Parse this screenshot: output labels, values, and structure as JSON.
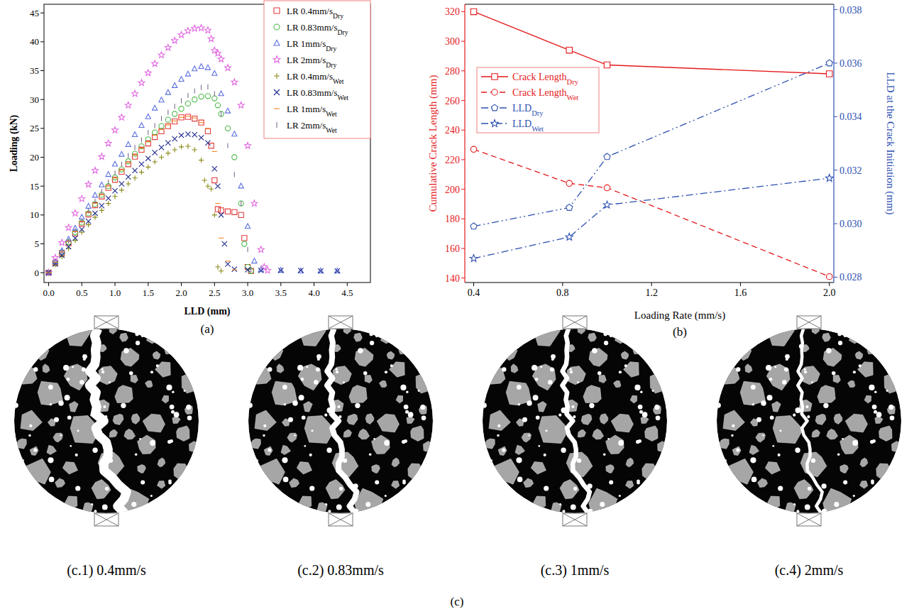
{
  "chart_data": [
    {
      "type": "scatter",
      "label": "(a)",
      "x_label": "LLD (mm)",
      "y_label": "Loading (kN)",
      "xlim": [
        -0.07,
        4.85
      ],
      "xticks": [
        {
          "value": 0,
          "label": "0.0"
        },
        0.5,
        {
          "value": 1,
          "label": "1.0"
        },
        1.5,
        {
          "value": 2,
          "label": "2.0"
        },
        2.5,
        {
          "value": 3,
          "label": "3.0"
        },
        3.5,
        {
          "value": 4,
          "label": "4.0"
        },
        4.5
      ],
      "ylim": [
        -1.7,
        46.5
      ],
      "yticks": [
        0,
        5,
        10,
        15,
        20,
        25,
        30,
        35,
        40,
        45
      ],
      "legend": "upper right",
      "series": [
        {
          "name": "LR 0.4mm/sDry",
          "color": "#e23b3b",
          "marker": "square",
          "x": [
            0,
            0.1,
            0.2,
            0.3,
            0.4,
            0.5,
            0.6,
            0.7,
            0.8,
            0.9,
            1,
            1.1,
            1.2,
            1.3,
            1.4,
            1.5,
            1.6,
            1.7,
            1.8,
            1.9,
            2,
            2.1,
            2.2,
            2.3,
            2.4,
            2.45,
            2.5,
            2.55,
            2.6,
            2.7,
            2.8,
            2.9,
            2.95,
            3.0,
            3.05
          ],
          "values": [
            0,
            1.7,
            3.4,
            5.1,
            6.8,
            8.5,
            10.1,
            11.7,
            13.2,
            14.7,
            16.1,
            17.5,
            18.8,
            20.1,
            21.3,
            22.4,
            23.5,
            24.5,
            25.4,
            26.2,
            26.9,
            27,
            26.7,
            26,
            24.5,
            22,
            16,
            11,
            10.8,
            10.6,
            10.5,
            10,
            6,
            1,
            0.3
          ]
        },
        {
          "name": "LR 0.83mm/sDry",
          "color": "#4cb849",
          "marker": "circle",
          "x": [
            0,
            0.1,
            0.2,
            0.3,
            0.4,
            0.5,
            0.6,
            0.7,
            0.8,
            0.9,
            1,
            1.1,
            1.2,
            1.3,
            1.4,
            1.5,
            1.6,
            1.7,
            1.8,
            1.9,
            2,
            2.1,
            2.2,
            2.3,
            2.4,
            2.5,
            2.55,
            2.6,
            2.7,
            2.8,
            2.9,
            2.95,
            3.0,
            3.05
          ],
          "values": [
            0,
            1.8,
            3.5,
            5.3,
            7,
            8.7,
            10.3,
            11.9,
            13.5,
            15,
            16.5,
            17.9,
            19.3,
            20.6,
            21.9,
            23.1,
            24.3,
            25.4,
            26.5,
            27.5,
            28.4,
            29.3,
            30,
            30.5,
            30.6,
            30.2,
            29,
            27.5,
            25,
            20,
            12,
            5,
            1,
            0.3
          ]
        },
        {
          "name": "LR 1mm/sDry",
          "color": "#5b6fe0",
          "marker": "triangle",
          "x": [
            0,
            0.1,
            0.2,
            0.3,
            0.4,
            0.5,
            0.6,
            0.7,
            0.8,
            0.9,
            1,
            1.1,
            1.2,
            1.3,
            1.4,
            1.5,
            1.6,
            1.7,
            1.8,
            1.9,
            2,
            2.1,
            2.2,
            2.3,
            2.4,
            2.5,
            2.6,
            2.7,
            2.8,
            2.9,
            3.0,
            3.1,
            3.2,
            3.5,
            3.8,
            4.1,
            4.35
          ],
          "values": [
            0,
            1.9,
            3.8,
            5.8,
            7.7,
            9.6,
            11.5,
            13.4,
            15.2,
            17,
            18.8,
            20.5,
            22.2,
            23.9,
            25.5,
            27,
            28.5,
            29.9,
            31.2,
            32.4,
            33.5,
            34.4,
            35.3,
            35.7,
            35.5,
            34.5,
            31,
            28,
            24,
            15,
            8,
            2,
            0.5,
            0.4,
            0.3,
            0.3,
            0.3
          ]
        },
        {
          "name": "LR 2mm/sDry",
          "color": "#e066e0",
          "marker": "star",
          "x": [
            0,
            0.1,
            0.2,
            0.3,
            0.4,
            0.5,
            0.6,
            0.7,
            0.8,
            0.9,
            1,
            1.1,
            1.2,
            1.3,
            1.4,
            1.5,
            1.6,
            1.7,
            1.8,
            1.9,
            2,
            2.1,
            2.2,
            2.3,
            2.4,
            2.45,
            2.5,
            2.55,
            2.6,
            2.7,
            2.8,
            2.9,
            3.0,
            3.1,
            3.2,
            3.25,
            3.3
          ],
          "values": [
            0,
            2.6,
            5.2,
            7.8,
            10.3,
            12.8,
            15.3,
            17.7,
            20.1,
            22.4,
            24.7,
            26.9,
            29,
            31,
            32.9,
            34.6,
            36.2,
            37.7,
            39,
            40.2,
            41.2,
            41.9,
            42.3,
            42.4,
            42,
            40.5,
            38.5,
            38,
            37,
            35.5,
            33,
            29,
            22,
            12,
            4,
            1,
            0.4
          ]
        },
        {
          "name": "LR 0.4mm/sWet",
          "color": "#8a8a1a",
          "marker": "plus",
          "x": [
            0,
            0.1,
            0.2,
            0.3,
            0.4,
            0.5,
            0.6,
            0.7,
            0.8,
            0.9,
            1,
            1.1,
            1.2,
            1.3,
            1.4,
            1.5,
            1.6,
            1.7,
            1.8,
            1.9,
            2,
            2.1,
            2.2,
            2.3,
            2.35,
            2.4,
            2.45,
            2.5,
            2.55,
            2.6
          ],
          "values": [
            0,
            1.4,
            2.8,
            4.2,
            5.6,
            7,
            8.3,
            9.6,
            10.8,
            12,
            13.2,
            14.3,
            15.4,
            16.4,
            17.4,
            18.3,
            19.2,
            20,
            20.7,
            21.3,
            21.8,
            21.9,
            21.3,
            19.5,
            16,
            15,
            14.5,
            10,
            1,
            0.3
          ]
        },
        {
          "name": "LR 0.83mm/sWet",
          "color": "#1f2a8c",
          "marker": "x",
          "x": [
            0,
            0.1,
            0.2,
            0.3,
            0.4,
            0.5,
            0.6,
            0.7,
            0.8,
            0.9,
            1,
            1.1,
            1.2,
            1.3,
            1.4,
            1.5,
            1.6,
            1.7,
            1.8,
            1.9,
            2,
            2.1,
            2.2,
            2.3,
            2.4,
            2.5,
            2.55,
            2.6,
            2.65,
            2.7,
            2.8,
            3.0,
            3.2,
            3.5,
            3.8,
            4.1,
            4.35
          ],
          "values": [
            0,
            1.5,
            3,
            4.5,
            6,
            7.5,
            8.9,
            10.3,
            11.6,
            12.9,
            14.2,
            15.4,
            16.6,
            17.7,
            18.8,
            19.8,
            20.8,
            21.7,
            22.5,
            23.2,
            23.8,
            24,
            23.9,
            23.4,
            22.5,
            18,
            15,
            10,
            5,
            1.5,
            0.6,
            0.5,
            0.4,
            0.4,
            0.4,
            0.3,
            0.3
          ]
        },
        {
          "name": "LR 1mm/sWet",
          "color": "#f5821f",
          "marker": "dash",
          "x": [
            0,
            0.1,
            0.2,
            0.3,
            0.4,
            0.5,
            0.6,
            0.7,
            0.8,
            0.9,
            1,
            1.1,
            1.2,
            1.3,
            1.4,
            1.5,
            1.6,
            1.7,
            1.8,
            1.9,
            2,
            2.1,
            2.2,
            2.3,
            2.4,
            2.5,
            2.55,
            2.6,
            2.7,
            2.8
          ],
          "values": [
            0,
            1.8,
            3.6,
            5.4,
            7.1,
            8.8,
            10.4,
            12,
            13.5,
            15,
            16.4,
            17.8,
            19.1,
            20.4,
            21.6,
            22.7,
            23.8,
            24.8,
            25.6,
            26.3,
            26.9,
            27.1,
            26.8,
            26,
            25,
            21,
            12,
            6,
            2,
            0.5
          ]
        },
        {
          "name": "LR 2mm/sWet",
          "color": "#7d6d8f",
          "marker": "vbar",
          "x": [
            0,
            0.1,
            0.2,
            0.3,
            0.4,
            0.5,
            0.6,
            0.7,
            0.8,
            0.9,
            1,
            1.1,
            1.2,
            1.3,
            1.4,
            1.5,
            1.6,
            1.7,
            1.8,
            1.9,
            2,
            2.1,
            2.2,
            2.3,
            2.4,
            2.5,
            2.6,
            2.7,
            2.8,
            2.9,
            3.0,
            3.05
          ],
          "values": [
            0,
            1.8,
            3.6,
            5.5,
            7.3,
            9,
            10.7,
            12.4,
            14.1,
            15.7,
            17.3,
            18.8,
            20.3,
            21.7,
            23,
            24.3,
            25.5,
            26.7,
            27.8,
            28.8,
            29.8,
            30.7,
            31.5,
            32.1,
            32.2,
            31,
            27.5,
            22,
            17,
            12,
            4,
            0.5
          ]
        }
      ]
    },
    {
      "type": "line",
      "label": "(b)",
      "x_label": "Loading Rate (mm/s)",
      "y_label": "Cumulative Crack Length (mm)",
      "y2_label": "LLD at the Crack Initiation (mm)",
      "x": [
        0.4,
        0.83,
        1,
        2
      ],
      "xlim": [
        0.36,
        2.02
      ],
      "xticks": [
        0.4,
        0.8,
        1.2,
        1.6,
        {
          "value": 2,
          "label": "2.0"
        }
      ],
      "ylim": [
        137,
        325
      ],
      "yticks": [
        140,
        160,
        180,
        200,
        220,
        240,
        260,
        280,
        300,
        320
      ],
      "y2lim": [
        0.0278,
        0.0382
      ],
      "y2ticks": [
        0.028,
        {
          "value": 0.03,
          "label": "0.030"
        },
        0.032,
        0.034,
        0.036,
        0.038
      ],
      "legend": "upper left",
      "series": [
        {
          "name": "Crack LengthDry",
          "color": "#e41a1c",
          "marker": "square",
          "line_style": "solid",
          "values": [
            320,
            294,
            284,
            278
          ]
        },
        {
          "name": "Crack LengthWet",
          "color": "#e41a1c",
          "marker": "circle",
          "line_style": "dashed",
          "values": [
            227,
            204,
            201,
            141
          ]
        },
        {
          "name": "LLDDry",
          "color": "#2d50b0",
          "marker": "pentagon",
          "line_style": "dashdotdot",
          "axis": "y2",
          "values": [
            0.0299,
            0.0306,
            0.0325,
            0.036
          ]
        },
        {
          "name": "LLDWet",
          "color": "#2d50b0",
          "marker": "star",
          "line_style": "dashdot",
          "axis": "y2",
          "values": [
            0.0287,
            0.0295,
            0.0307,
            0.0317
          ]
        }
      ]
    }
  ],
  "figure_c": {
    "label": "(c)",
    "images": [
      {
        "caption": "(c.1) 0.4mm/s"
      },
      {
        "caption": "(c.2) 0.83mm/s"
      },
      {
        "caption": "(c.3) 1mm/s"
      },
      {
        "caption": "(c.4) 2mm/s"
      }
    ]
  }
}
